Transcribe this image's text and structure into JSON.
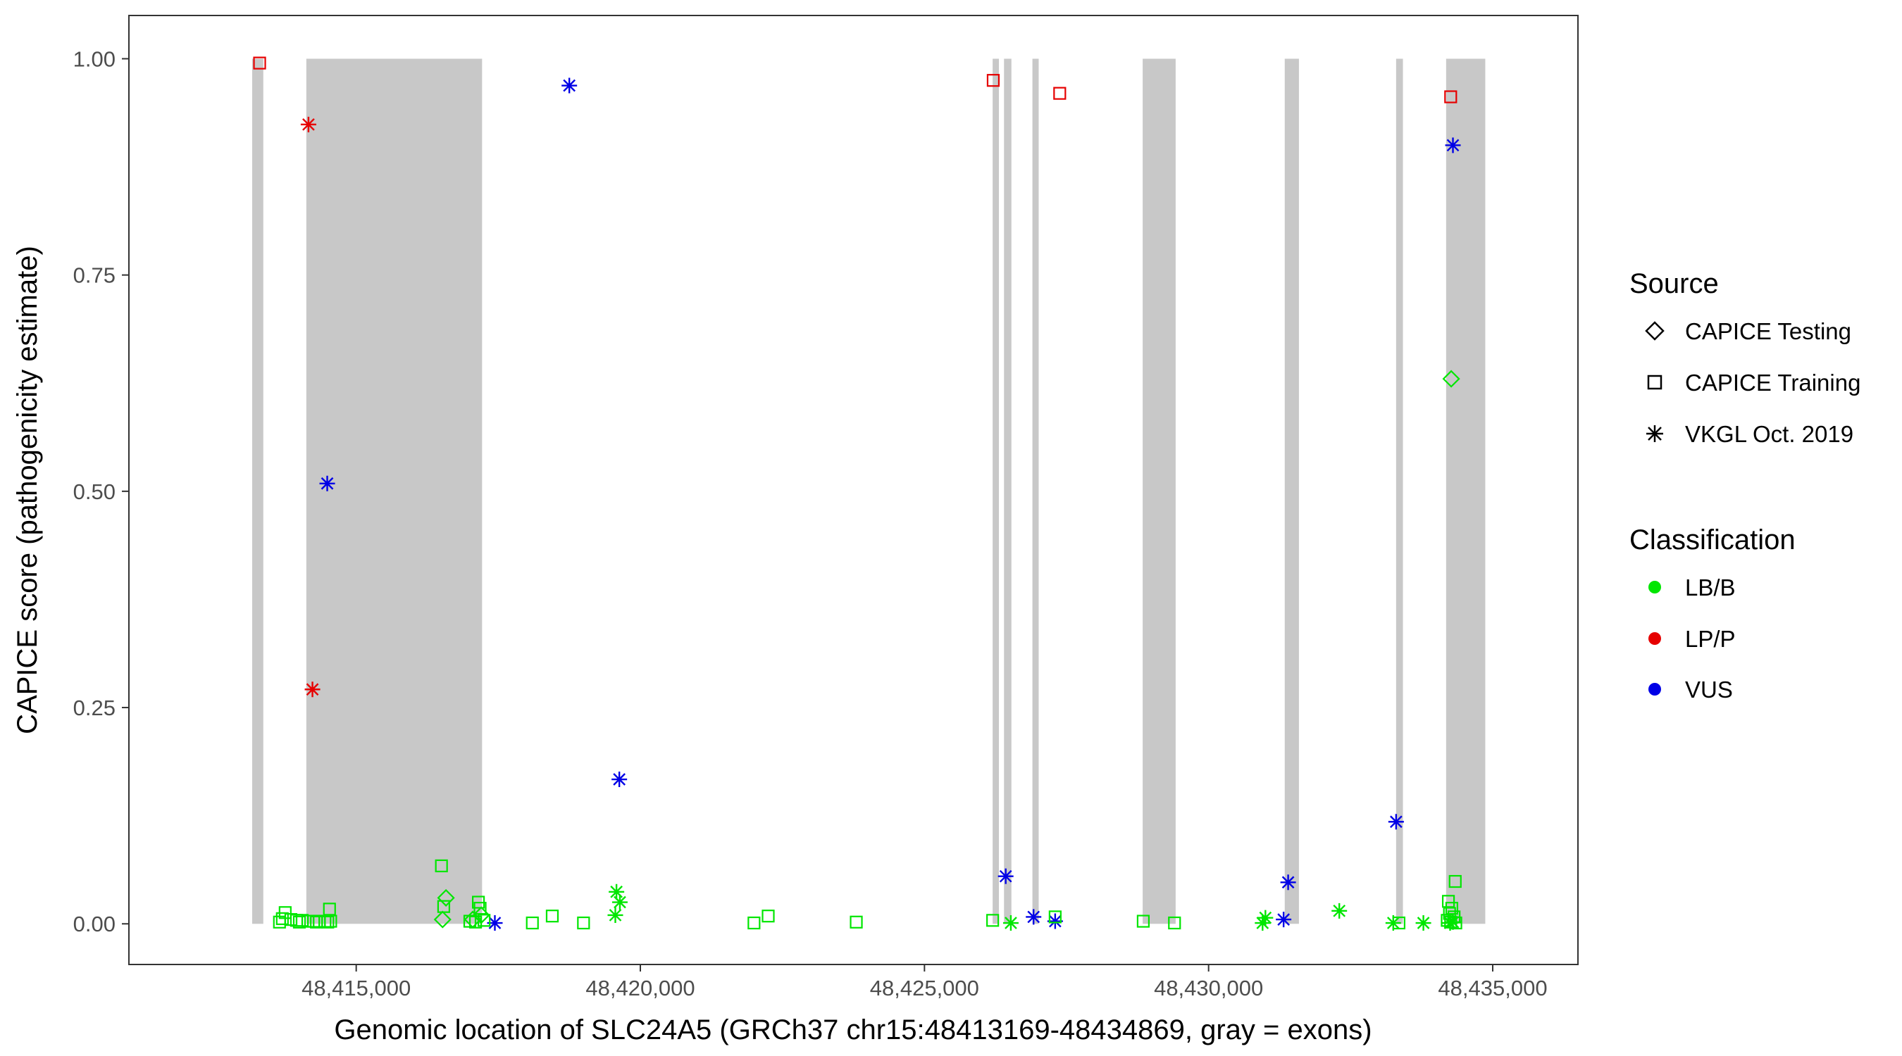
{
  "chart_data": {
    "type": "scatter",
    "title": "",
    "xlabel": "Genomic location of SLC24A5 (GRCh37 chr15:48413169-48434869, gray = exons)",
    "ylabel": "CAPICE score (pathogenicity estimate)",
    "xlim": [
      48411000,
      48436500
    ],
    "ylim": [
      -0.047,
      1.05
    ],
    "x_ticks": [
      48415000,
      48420000,
      48425000,
      48430000,
      48435000
    ],
    "x_tick_labels": [
      "48,415,000",
      "48,420,000",
      "48,425,000",
      "48,430,000",
      "48,435,000"
    ],
    "y_ticks": [
      0,
      0.25,
      0.5,
      0.75,
      1.0
    ],
    "y_tick_labels": [
      "0.00",
      "0.25",
      "0.50",
      "0.75",
      "1.00"
    ],
    "grid": false,
    "exons": [
      [
        48413169,
        48413365
      ],
      [
        48414122,
        48417215
      ],
      [
        48426200,
        48426310
      ],
      [
        48426400,
        48426530
      ],
      [
        48426900,
        48427010
      ],
      [
        48428840,
        48429420
      ],
      [
        48431340,
        48431590
      ],
      [
        48433300,
        48433420
      ],
      [
        48434180,
        48434869
      ]
    ],
    "legend": {
      "position": "right",
      "source": {
        "title": "Source",
        "items": [
          {
            "label": "CAPICE Testing",
            "shape": "diamond"
          },
          {
            "label": "CAPICE Training",
            "shape": "square"
          },
          {
            "label": "VKGL Oct. 2019",
            "shape": "asterisk"
          }
        ]
      },
      "classification": {
        "title": "Classification",
        "items": [
          {
            "label": "LB/B",
            "color": "#00e600"
          },
          {
            "label": "LP/P",
            "color": "#e60000"
          },
          {
            "label": "VUS",
            "color": "#0000e6"
          }
        ]
      }
    },
    "series": [
      {
        "source": "CAPICE Training",
        "classification": "LP/P",
        "points": [
          [
            48413300,
            0.995
          ],
          [
            48426210,
            0.975
          ],
          [
            48427380,
            0.96
          ],
          [
            48434260,
            0.956
          ]
        ]
      },
      {
        "source": "VKGL Oct. 2019",
        "classification": "LP/P",
        "points": [
          [
            48414160,
            0.924
          ],
          [
            48414230,
            0.271
          ]
        ]
      },
      {
        "source": "VKGL Oct. 2019",
        "classification": "VUS",
        "points": [
          [
            48414490,
            0.509
          ],
          [
            48418750,
            0.969
          ],
          [
            48419630,
            0.167
          ],
          [
            48426430,
            0.055
          ],
          [
            48434300,
            0.9
          ],
          [
            48433300,
            0.118
          ],
          [
            48431400,
            0.048
          ],
          [
            48427300,
            0.003
          ],
          [
            48426920,
            0.008
          ],
          [
            48431320,
            0.005
          ],
          [
            48417440,
            0.001
          ]
        ]
      },
      {
        "source": "CAPICE Testing",
        "classification": "LB/B",
        "points": [
          [
            48434270,
            0.63
          ],
          [
            48416580,
            0.03
          ],
          [
            48416520,
            0.005
          ],
          [
            48417200,
            0.01
          ],
          [
            48417050,
            0.005
          ]
        ]
      },
      {
        "source": "CAPICE Training",
        "classification": "LB/B",
        "points": [
          [
            48416500,
            0.067
          ],
          [
            48417150,
            0.025
          ],
          [
            48414530,
            0.017
          ],
          [
            48416540,
            0.02
          ],
          [
            48417180,
            0.018
          ],
          [
            48413750,
            0.013
          ],
          [
            48413700,
            0.006
          ],
          [
            48413850,
            0.005
          ],
          [
            48413950,
            0.004
          ],
          [
            48414050,
            0.004
          ],
          [
            48414150,
            0.003
          ],
          [
            48414250,
            0.003
          ],
          [
            48414350,
            0.003
          ],
          [
            48414450,
            0.003
          ],
          [
            48414550,
            0.003
          ],
          [
            48413650,
            0.002
          ],
          [
            48414500,
            0.002
          ],
          [
            48414000,
            0.002
          ],
          [
            48414300,
            0.002
          ],
          [
            48417000,
            0.003
          ],
          [
            48417100,
            0.002
          ],
          [
            48417250,
            0.004
          ],
          [
            48418100,
            0.001
          ],
          [
            48418450,
            0.009
          ],
          [
            48419000,
            0.001
          ],
          [
            48422000,
            0.001
          ],
          [
            48422250,
            0.009
          ],
          [
            48423800,
            0.002
          ],
          [
            48426200,
            0.004
          ],
          [
            48427300,
            0.008
          ],
          [
            48428850,
            0.003
          ],
          [
            48429400,
            0.001
          ],
          [
            48433350,
            0.001
          ],
          [
            48434220,
            0.026
          ],
          [
            48434340,
            0.049
          ],
          [
            48434280,
            0.018
          ],
          [
            48434240,
            0.012
          ],
          [
            48434320,
            0.008
          ],
          [
            48434200,
            0.004
          ],
          [
            48434260,
            0.002
          ],
          [
            48434350,
            0.001
          ]
        ]
      },
      {
        "source": "VKGL Oct. 2019",
        "classification": "LB/B",
        "points": [
          [
            48419580,
            0.037
          ],
          [
            48419640,
            0.025
          ],
          [
            48419560,
            0.01
          ],
          [
            48426520,
            0.001
          ],
          [
            48431000,
            0.007
          ],
          [
            48430950,
            0.001
          ],
          [
            48432300,
            0.015
          ],
          [
            48433780,
            0.001
          ],
          [
            48433250,
            0.001
          ],
          [
            48434300,
            0.002
          ],
          [
            48434250,
            0.001
          ]
        ]
      }
    ]
  }
}
